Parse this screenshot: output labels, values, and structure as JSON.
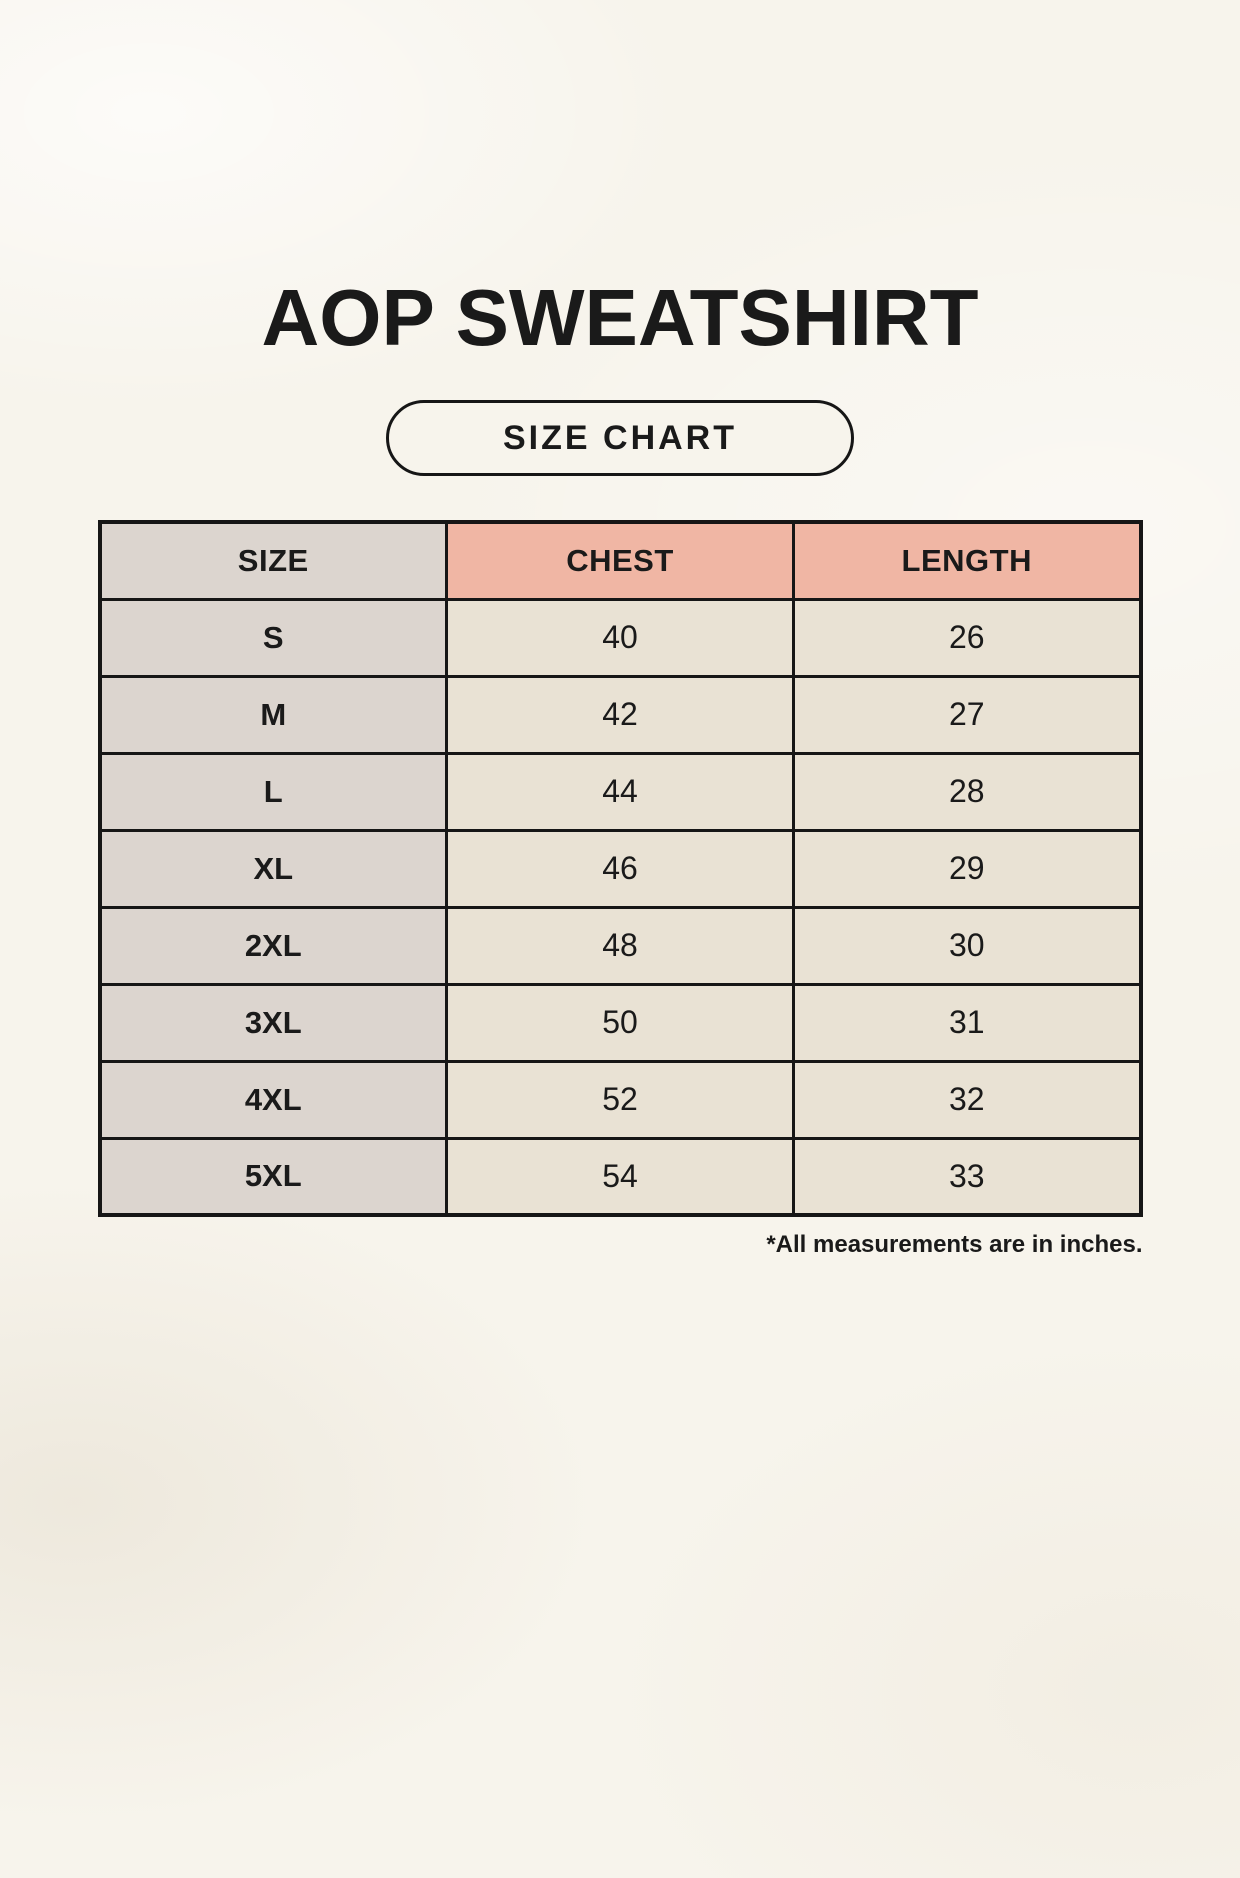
{
  "page": {
    "title": "AOP SWEATSHIRT",
    "badge_label": "SIZE CHART",
    "footnote": "*All measurements are in inches."
  },
  "table": {
    "columns": [
      "SIZE",
      "CHEST",
      "LENGTH"
    ],
    "rows": [
      {
        "size": "S",
        "chest": "40",
        "length": "26"
      },
      {
        "size": "M",
        "chest": "42",
        "length": "27"
      },
      {
        "size": "L",
        "chest": "44",
        "length": "28"
      },
      {
        "size": "XL",
        "chest": "46",
        "length": "29"
      },
      {
        "size": "2XL",
        "chest": "48",
        "length": "30"
      },
      {
        "size": "3XL",
        "chest": "50",
        "length": "31"
      },
      {
        "size": "4XL",
        "chest": "52",
        "length": "32"
      },
      {
        "size": "5XL",
        "chest": "54",
        "length": "33"
      }
    ]
  },
  "chart_data": {
    "type": "table",
    "title": "AOP SWEATSHIRT",
    "columns": [
      "SIZE",
      "CHEST",
      "LENGTH"
    ],
    "rows": [
      [
        "S",
        40,
        26
      ],
      [
        "M",
        42,
        27
      ],
      [
        "L",
        44,
        28
      ],
      [
        "XL",
        46,
        29
      ],
      [
        "2XL",
        48,
        30
      ],
      [
        "3XL",
        50,
        31
      ],
      [
        "4XL",
        52,
        32
      ],
      [
        "5XL",
        54,
        33
      ]
    ],
    "note": "*All measurements are in inches.",
    "units": "inches"
  },
  "colors": {
    "background": "#f7f4ec",
    "border": "#161616",
    "text": "#1a1a1a",
    "size_column_bg": "#dcd5cf",
    "measure_header_bg": "#f0b6a4",
    "data_cell_bg": "#e9e2d4"
  }
}
